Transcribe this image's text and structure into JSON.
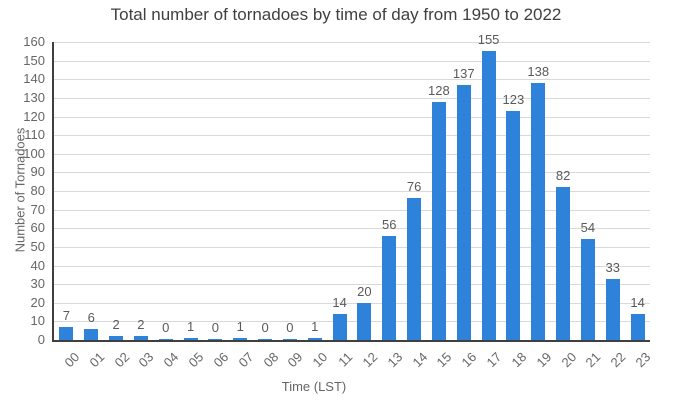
{
  "chart_data": {
    "type": "bar",
    "title": "Total number of tornadoes by time of day from 1950 to 2022",
    "xlabel": "Time (LST)",
    "ylabel": "Number of Tornadoes",
    "categories": [
      "00",
      "01",
      "02",
      "03",
      "04",
      "05",
      "06",
      "07",
      "08",
      "09",
      "10",
      "11",
      "12",
      "13",
      "14",
      "15",
      "16",
      "17",
      "18",
      "19",
      "20",
      "21",
      "22",
      "23"
    ],
    "values": [
      7,
      6,
      2,
      2,
      0,
      1,
      0,
      1,
      0,
      0,
      1,
      14,
      20,
      56,
      76,
      128,
      137,
      155,
      123,
      138,
      82,
      54,
      33,
      14
    ],
    "ylim": [
      0,
      160
    ],
    "yticks": [
      0,
      10,
      20,
      30,
      40,
      50,
      60,
      70,
      80,
      90,
      100,
      110,
      120,
      130,
      140,
      150,
      160
    ],
    "grid": "horizontal",
    "legend": "none",
    "value_labels": "above-bars",
    "x_label_rotation_deg": -45,
    "bar_color": "#2F82D9",
    "colors": {
      "grid": "#D9D9D9",
      "axis": "#3F3F3F",
      "tick_label": "#666666",
      "value_label": "#5A5A5A",
      "title": "#404040",
      "background": "#FFFFFF"
    }
  }
}
